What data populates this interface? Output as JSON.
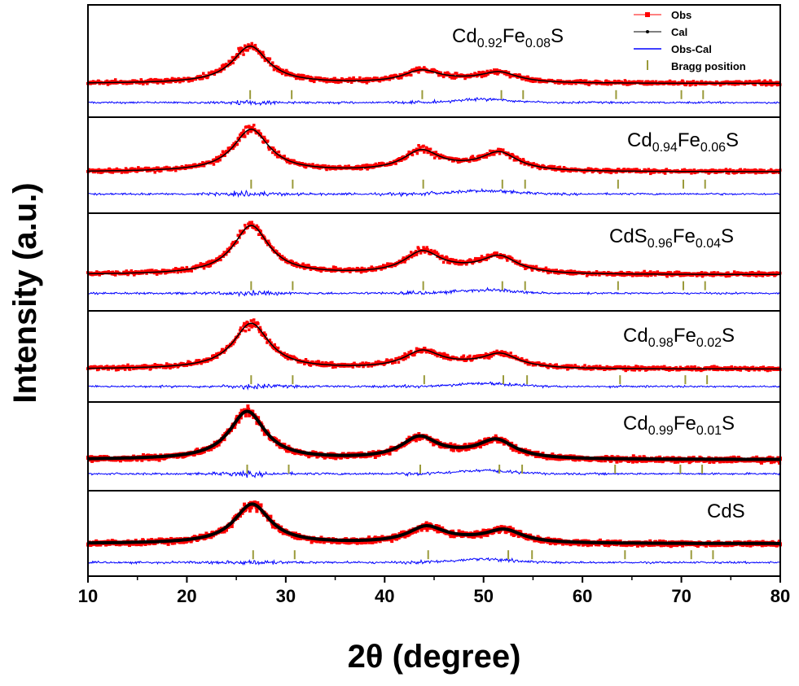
{
  "chart_data": {
    "type": "line",
    "xlabel": "2θ (degree)",
    "ylabel": "Intensity (a.u.)",
    "xlim": [
      10,
      80
    ],
    "x_ticks": [
      10,
      20,
      30,
      40,
      50,
      60,
      70,
      80
    ],
    "legend": {
      "placement": "top-right",
      "entries": [
        "Obs",
        "Cal",
        "Obs-Cal",
        "Bragg position"
      ]
    },
    "colors": {
      "obs": "#ff0000",
      "cal": "#000000",
      "diff": "#0000ff",
      "bragg": "#9a9a3a"
    },
    "panels": [
      {
        "label": {
          "parts": [
            {
              "t": "Cd"
            },
            {
              "t": "0.92",
              "sub": true
            },
            {
              "t": "Fe"
            },
            {
              "t": "0.08",
              "sub": true
            },
            {
              "t": "S"
            }
          ]
        },
        "peaks": [
          {
            "pos": 26.4,
            "height": 1.0
          },
          {
            "pos": 43.7,
            "height": 0.3
          },
          {
            "pos": 51.6,
            "height": 0.25
          }
        ],
        "bragg": [
          26.4,
          30.6,
          43.8,
          51.8,
          54.0,
          63.4,
          70.0,
          72.2
        ]
      },
      {
        "label": {
          "parts": [
            {
              "t": "Cd"
            },
            {
              "t": "0.94",
              "sub": true
            },
            {
              "t": "Fe"
            },
            {
              "t": "0.06",
              "sub": true
            },
            {
              "t": "S"
            }
          ]
        },
        "peaks": [
          {
            "pos": 26.5,
            "height": 1.0
          },
          {
            "pos": 43.7,
            "height": 0.45
          },
          {
            "pos": 51.6,
            "height": 0.4
          }
        ],
        "bragg": [
          26.5,
          30.7,
          43.9,
          51.9,
          54.2,
          63.6,
          70.2,
          72.4
        ]
      },
      {
        "label": {
          "parts": [
            {
              "t": "CdS"
            },
            {
              "t": "0.96",
              "sub": true
            },
            {
              "t": "Fe"
            },
            {
              "t": "0.04",
              "sub": true
            },
            {
              "t": "S"
            }
          ]
        },
        "peaks": [
          {
            "pos": 26.5,
            "height": 1.0
          },
          {
            "pos": 43.8,
            "height": 0.42
          },
          {
            "pos": 51.6,
            "height": 0.32
          }
        ],
        "bragg": [
          26.5,
          30.7,
          43.9,
          51.9,
          54.2,
          63.6,
          70.2,
          72.4
        ]
      },
      {
        "label": {
          "parts": [
            {
              "t": "Cd"
            },
            {
              "t": "0.98",
              "sub": true
            },
            {
              "t": "Fe"
            },
            {
              "t": "0.02",
              "sub": true
            },
            {
              "t": "S"
            }
          ]
        },
        "peaks": [
          {
            "pos": 26.5,
            "height": 1.0
          },
          {
            "pos": 43.8,
            "height": 0.35
          },
          {
            "pos": 51.7,
            "height": 0.28
          }
        ],
        "bragg": [
          26.5,
          30.7,
          44.0,
          52.0,
          54.4,
          63.8,
          70.4,
          72.6
        ]
      },
      {
        "label": {
          "parts": [
            {
              "t": "Cd"
            },
            {
              "t": "0.99",
              "sub": true
            },
            {
              "t": "Fe"
            },
            {
              "t": "0.01",
              "sub": true
            },
            {
              "t": "S"
            }
          ]
        },
        "peaks": [
          {
            "pos": 26.1,
            "height": 1.0
          },
          {
            "pos": 43.5,
            "height": 0.42
          },
          {
            "pos": 51.3,
            "height": 0.35
          }
        ],
        "bragg": [
          26.1,
          30.3,
          43.6,
          51.6,
          53.9,
          63.3,
          69.9,
          72.1
        ]
      },
      {
        "label": {
          "parts": [
            {
              "t": "CdS"
            }
          ]
        },
        "peaks": [
          {
            "pos": 26.6,
            "height": 1.0
          },
          {
            "pos": 44.2,
            "height": 0.38
          },
          {
            "pos": 52.1,
            "height": 0.3
          }
        ],
        "bragg": [
          26.7,
          30.9,
          44.4,
          52.5,
          54.9,
          64.3,
          71.0,
          73.2
        ]
      }
    ]
  }
}
